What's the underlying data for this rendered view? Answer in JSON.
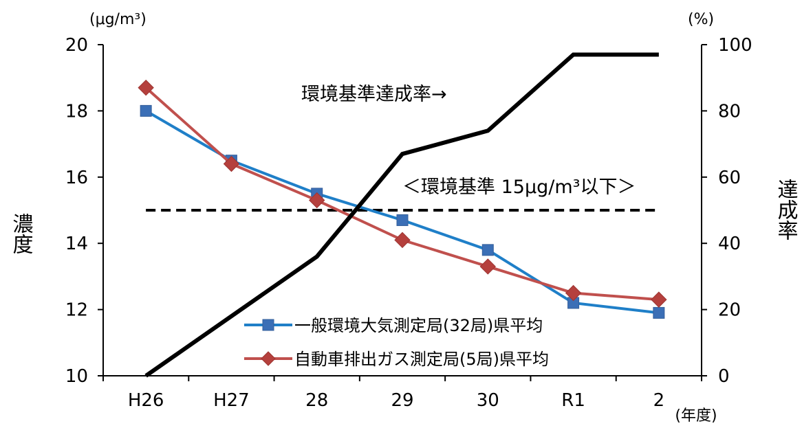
{
  "chart_data": {
    "type": "line",
    "categories": [
      "H26",
      "H27",
      "28",
      "29",
      "30",
      "R1",
      "2"
    ],
    "x_unit_label": "(年度)",
    "left_axis": {
      "title": "濃度",
      "unit": "(μg/m³)",
      "ylim": [
        10,
        20
      ],
      "ticks": [
        10,
        12,
        14,
        16,
        18,
        20
      ]
    },
    "right_axis": {
      "title": "達成率",
      "unit": "(%)",
      "ylim": [
        0,
        100
      ],
      "ticks": [
        0,
        20,
        40,
        60,
        80,
        100
      ]
    },
    "series": [
      {
        "name": "一般環境大気測定局(32局)県平均",
        "axis": "left",
        "color": "#1f7fc8",
        "marker": "square",
        "values": [
          18.0,
          16.5,
          15.5,
          14.7,
          13.8,
          12.2,
          11.9
        ]
      },
      {
        "name": "自動車排出ガス測定局(5局)県平均",
        "axis": "left",
        "color": "#c0504d",
        "marker": "diamond",
        "values": [
          18.7,
          16.4,
          15.3,
          14.1,
          13.3,
          12.5,
          12.3
        ]
      },
      {
        "axis": "right",
        "color": "#000000",
        "values": [
          0,
          18,
          36,
          67,
          74,
          97,
          97
        ]
      }
    ],
    "reference_line": {
      "axis": "left",
      "value": 15,
      "label": "＜環境基準 15μg/m³以下＞",
      "color": "#000000"
    },
    "annotations": [
      {
        "text": "環境基準達成率→"
      }
    ],
    "grid": false,
    "legend_position": "bottom-center"
  }
}
